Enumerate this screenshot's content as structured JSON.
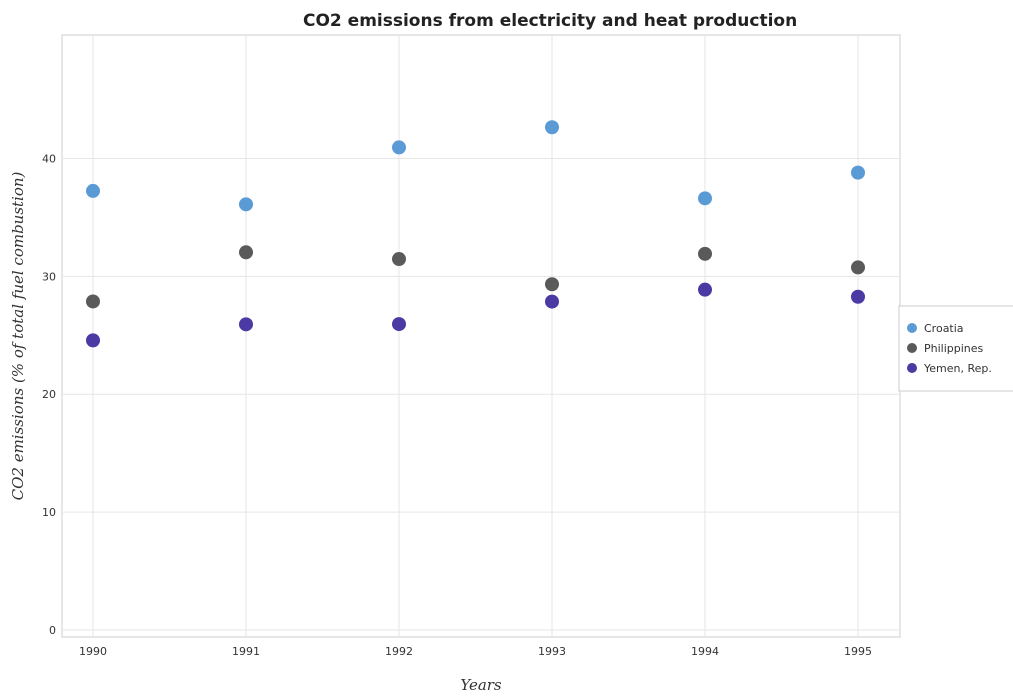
{
  "chart_data": {
    "type": "scatter",
    "title": "CO2 emissions from electricity and heat production",
    "xlabel": "Years",
    "ylabel": "CO2 emissions (% of total fuel combustion)",
    "categories": [
      "1990",
      "1991",
      "1992",
      "1993",
      "1994",
      "1995"
    ],
    "yticks": [
      "0",
      "10",
      "20",
      "30",
      "40"
    ],
    "ylim": [
      0,
      44
    ],
    "grid": true,
    "legend_position": "right",
    "series": [
      {
        "name": "Croatia",
        "color": "#5b9bd5",
        "values": [
          37.25,
          36.11,
          40.94,
          42.65,
          36.62,
          38.8
        ]
      },
      {
        "name": "Philippines",
        "color": "#5a5a5a",
        "values": [
          27.87,
          32.04,
          31.47,
          29.33,
          31.91,
          30.76
        ]
      },
      {
        "name": "Yemen, Rep.",
        "color": "#4b3aa3",
        "values": [
          24.57,
          25.93,
          25.95,
          27.86,
          28.87,
          28.27
        ]
      }
    ]
  }
}
